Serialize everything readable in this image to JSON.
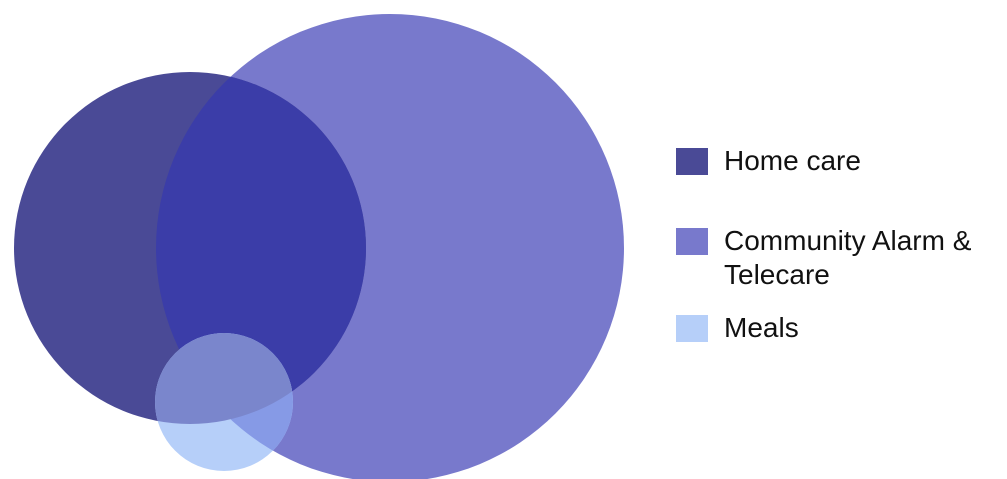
{
  "diagram": {
    "type": "venn",
    "sets": [
      {
        "id": "home-care",
        "label": "Home care",
        "color": "#4a4a96"
      },
      {
        "id": "community-alarm-telecare",
        "label": "Community Alarm & Telecare",
        "color": "#7879cc"
      },
      {
        "id": "meals",
        "label": "Meals",
        "color": "#b6cff9"
      }
    ],
    "overlap_colors": {
      "home-care__community-alarm-telecare": "#3b3da8",
      "meals__community-alarm-telecare": "#869ae6",
      "meals__home-care": "#7a86cc"
    }
  },
  "legend": {
    "items": [
      {
        "label": "Home care",
        "color": "#4a4a96"
      },
      {
        "label": "Community Alarm & Telecare",
        "color": "#7879cc"
      },
      {
        "label": "Meals",
        "color": "#b6cff9"
      }
    ]
  }
}
